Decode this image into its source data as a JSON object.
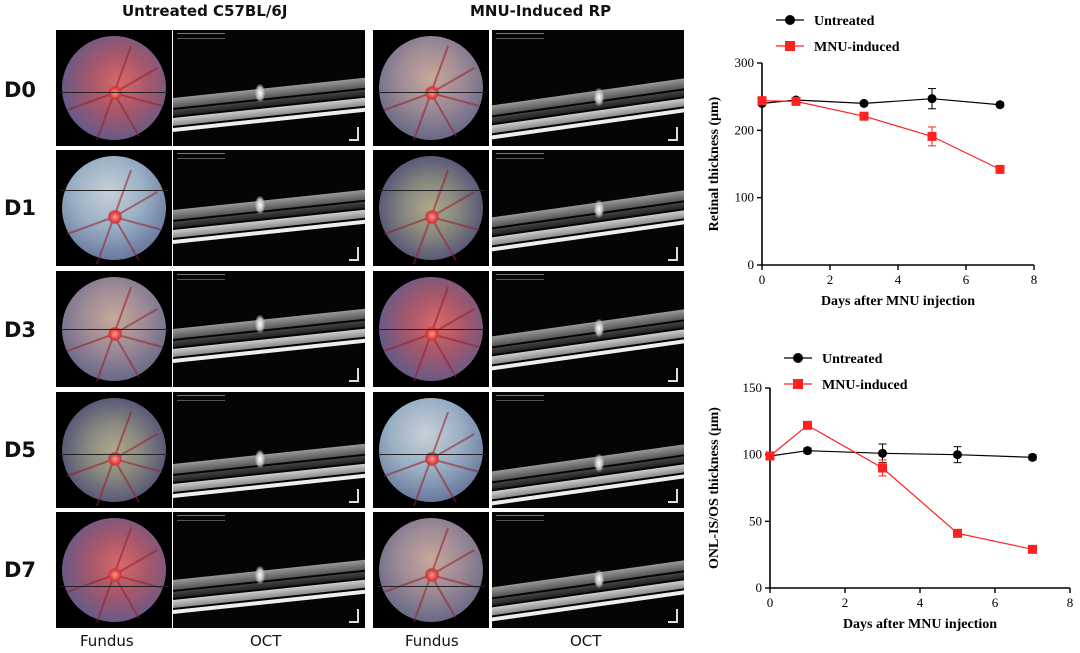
{
  "figure": {
    "column_titles": [
      "Untreated C57BL/6J",
      "MNU-Induced RP"
    ],
    "row_labels": [
      "D0",
      "D1",
      "D3",
      "D5",
      "D7"
    ],
    "bottom_labels": [
      "Fundus",
      "OCT",
      "Fundus",
      "OCT"
    ]
  },
  "chart_data": [
    {
      "type": "line",
      "title": "",
      "xlabel": "Days after MNU injection",
      "ylabel": "Retinal thickness (μm)",
      "xlim": [
        0,
        8
      ],
      "ylim": [
        0,
        300
      ],
      "xticks": [
        0,
        2,
        4,
        6,
        8
      ],
      "yticks": [
        0,
        100,
        200,
        300
      ],
      "legend_position": "top-left",
      "series": [
        {
          "name": "Untreated",
          "color": "#000000",
          "marker": "circle",
          "x": [
            0,
            1,
            3,
            5,
            7
          ],
          "y": [
            240,
            245,
            240,
            247,
            238
          ],
          "err": [
            3,
            3,
            3,
            15,
            3
          ]
        },
        {
          "name": "MNU-induced",
          "color": "#ff2020",
          "marker": "square",
          "x": [
            0,
            1,
            3,
            5,
            7
          ],
          "y": [
            244,
            243,
            221,
            191,
            142
          ],
          "err": [
            3,
            3,
            4,
            14,
            4
          ]
        }
      ]
    },
    {
      "type": "line",
      "title": "",
      "xlabel": "Days after MNU injection",
      "ylabel": "ONL-IS/OS thickness (μm)",
      "xlim": [
        0,
        8
      ],
      "ylim": [
        0,
        150
      ],
      "xticks": [
        0,
        2,
        4,
        6,
        8
      ],
      "yticks": [
        0,
        50,
        100,
        150
      ],
      "legend_position": "top-left",
      "series": [
        {
          "name": "Untreated",
          "color": "#000000",
          "marker": "circle",
          "x": [
            0,
            1,
            3,
            5,
            7
          ],
          "y": [
            99,
            103,
            101,
            100,
            98
          ],
          "err": [
            2,
            2,
            7,
            6,
            2
          ]
        },
        {
          "name": "MNU-induced",
          "color": "#ff2020",
          "marker": "square",
          "x": [
            0,
            1,
            3,
            5,
            7
          ],
          "y": [
            99,
            122,
            90,
            41,
            29
          ],
          "err": [
            2,
            2,
            6,
            2,
            2
          ]
        }
      ]
    }
  ]
}
